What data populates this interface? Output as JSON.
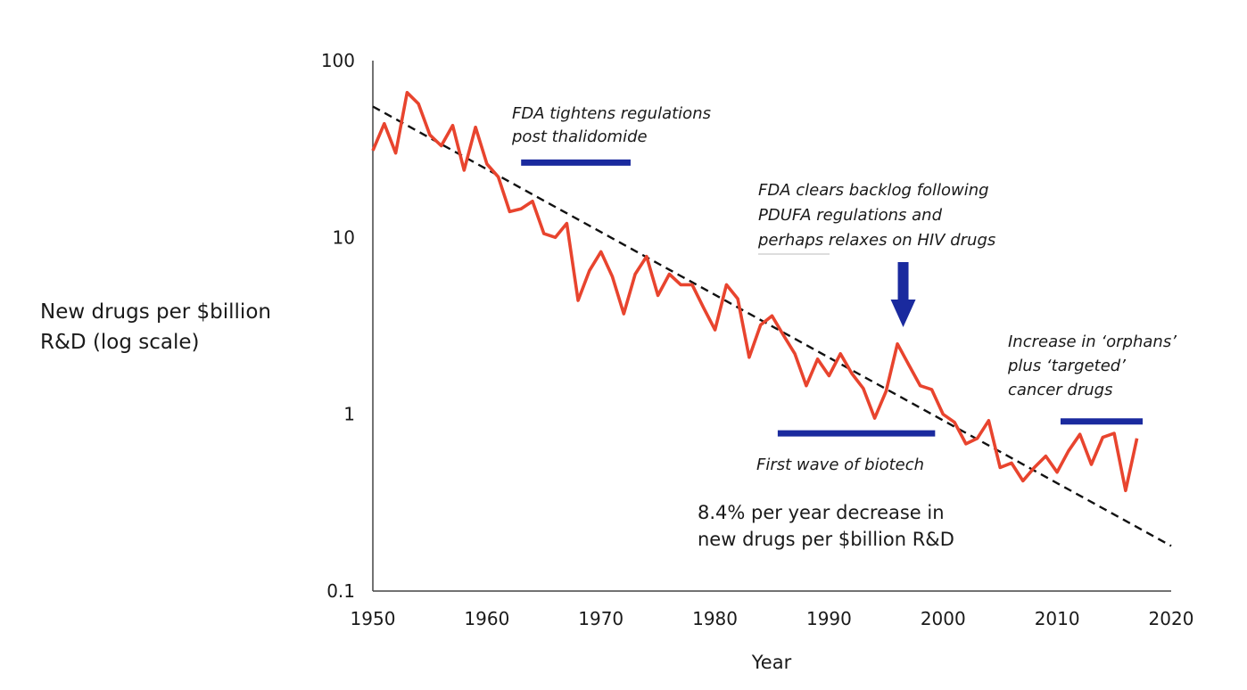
{
  "chart_data": {
    "type": "line",
    "title": "",
    "xlabel": "Year",
    "ylabel_lines": [
      "New drugs per $billion",
      "R&D (log scale)"
    ],
    "x_ticks": [
      1950,
      1960,
      1970,
      1980,
      1990,
      2000,
      2010,
      2020
    ],
    "y_ticks": [
      {
        "value": 0.1,
        "label": "0.1"
      },
      {
        "value": 1,
        "label": "1"
      },
      {
        "value": 10,
        "label": "10"
      },
      {
        "value": 100,
        "label": "100"
      }
    ],
    "xlim": [
      1950,
      2020
    ],
    "ylim": [
      0.1,
      100
    ],
    "y_scale": "log",
    "grid": false,
    "series": [
      {
        "color": "#e8442e",
        "x": [
          1950,
          1951,
          1952,
          1953,
          1954,
          1955,
          1956,
          1957,
          1958,
          1959,
          1960,
          1961,
          1962,
          1963,
          1964,
          1965,
          1966,
          1967,
          1968,
          1969,
          1970,
          1971,
          1972,
          1973,
          1974,
          1975,
          1976,
          1977,
          1978,
          1979,
          1980,
          1981,
          1982,
          1983,
          1984,
          1985,
          1986,
          1987,
          1988,
          1989,
          1990,
          1991,
          1992,
          1993,
          1994,
          1995,
          1996,
          1997,
          1998,
          1999,
          2000,
          2001,
          2002,
          2003,
          2004,
          2005,
          2006,
          2007,
          2008,
          2009,
          2010,
          2011,
          2012,
          2013,
          2014,
          2015,
          2016,
          2017
        ],
        "y": [
          31,
          44,
          30,
          66,
          57,
          38,
          33,
          43,
          24,
          42,
          26,
          22,
          14,
          14.5,
          16,
          10.5,
          10,
          12,
          4.4,
          6.5,
          8.3,
          6,
          3.7,
          6.2,
          7.8,
          4.7,
          6.2,
          5.4,
          5.4,
          4,
          3,
          5.4,
          4.5,
          2.1,
          3.2,
          3.6,
          2.8,
          2.2,
          1.45,
          2.05,
          1.65,
          2.2,
          1.7,
          1.4,
          0.95,
          1.35,
          2.5,
          1.9,
          1.45,
          1.38,
          1,
          0.9,
          0.68,
          0.73,
          0.92,
          0.5,
          0.53,
          0.42,
          0.5,
          0.58,
          0.47,
          0.62,
          0.77,
          0.52,
          0.74,
          0.78,
          0.37,
          0.73
        ]
      }
    ],
    "trend_line": {
      "style": "dashed",
      "color": "#111111",
      "from": [
        1950,
        55
      ],
      "to": [
        2020,
        0.18
      ]
    },
    "annotations": {
      "fda_tightens": {
        "lines": [
          "FDA tightens regulations",
          "post thalidomide"
        ],
        "bar": {
          "x_from": 1963,
          "x_to": 1972.6,
          "y": 26.5,
          "color": "#1a2a9e"
        }
      },
      "fda_clears": {
        "lines": [
          "FDA clears backlog following",
          "PDUFA regulations and",
          "perhaps relaxes on HIV drugs"
        ],
        "arrow_year": 1996.5,
        "arrow_color": "#1a2a9e"
      },
      "biotech": {
        "text": "First wave of biotech",
        "bar": {
          "x_from": 1985.5,
          "x_to": 1999.3,
          "y": 0.78,
          "color": "#1a2a9e"
        }
      },
      "orphans": {
        "lines": [
          "Increase in ‘orphans’",
          "plus ‘targeted’",
          "cancer drugs"
        ],
        "bar": {
          "x_from": 2010.3,
          "x_to": 2017.5,
          "y": 0.91,
          "color": "#1a2a9e"
        }
      },
      "decrease": {
        "lines": [
          "8.4% per year decrease in",
          "new drugs per $billion R&D"
        ]
      }
    }
  }
}
